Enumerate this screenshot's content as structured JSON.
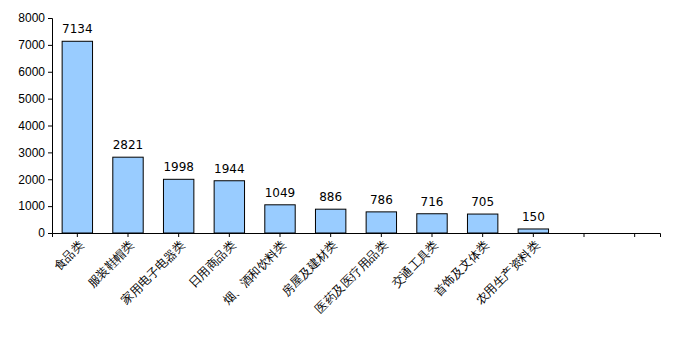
{
  "chart_data": {
    "type": "bar",
    "categories": [
      "食品类",
      "服装鞋帽类",
      "家用电子电器类",
      "日用商品类",
      "烟、酒和饮料类",
      "房屋及建材类",
      "医药及医疗用品类",
      "交通工具类",
      "首饰及文体类",
      "农用生产资料类",
      null,
      null
    ],
    "values": [
      7134,
      2821,
      1998,
      1944,
      1049,
      886,
      786,
      716,
      705,
      150,
      null,
      null
    ],
    "color": "#99ccff",
    "ylim": [
      0,
      8000
    ],
    "yticks": [
      0,
      1000,
      2000,
      3000,
      4000,
      5000,
      6000,
      7000,
      8000
    ],
    "grid": false,
    "data_labels": true
  }
}
